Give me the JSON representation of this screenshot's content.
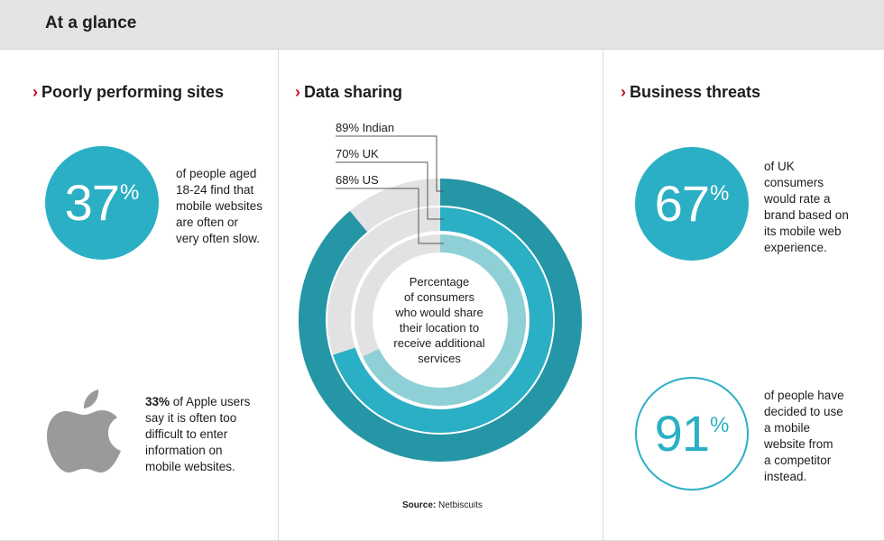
{
  "header": {
    "title": "At a glance"
  },
  "sections": {
    "left": {
      "title": "Poorly performing sites",
      "stat": {
        "value": "37",
        "unit": "%"
      },
      "stat_text": [
        "of people aged",
        "18-24 find that",
        "mobile websites",
        "are often or",
        "very often slow."
      ],
      "apple_bold": "33%",
      "apple_text": [
        "of Apple users",
        "say it is often too",
        "difficult to enter",
        "information on",
        "mobile websites."
      ]
    },
    "middle": {
      "title": "Data sharing",
      "center_text": [
        "Percentage",
        "of consumers",
        "who would share",
        "their location to",
        "receive additional",
        "services"
      ],
      "source_label": "Source:",
      "source_value": "Netbiscuits"
    },
    "right": {
      "title": "Business threats",
      "stat1": {
        "value": "67",
        "unit": "%"
      },
      "stat1_text": [
        "of UK",
        "consumers",
        "would rate a",
        "brand based on",
        "its mobile web",
        "experience."
      ],
      "stat2": {
        "value": "91",
        "unit": "%"
      },
      "stat2_text": [
        "of people have",
        "decided to use",
        "a mobile",
        "website from",
        "a competitor",
        "instead."
      ]
    }
  },
  "icons": {
    "apple": "apple-logo-icon",
    "chevron": "chevron-right-icon"
  },
  "colors": {
    "accent": "#2bafc5",
    "ring_outer": "#2596a6",
    "ring_middle": "#2bafc5",
    "ring_inner": "#8fd0d7",
    "ring_track": "#e2e2e4",
    "chevron": "#c8102e",
    "apple": "#9a9a9d"
  },
  "chart_data": {
    "type": "pie",
    "title": "Data sharing",
    "categories": [
      "Indian",
      "UK",
      "US"
    ],
    "values": [
      89,
      70,
      68
    ],
    "labels": [
      "89% Indian",
      "70% UK",
      "68% US"
    ],
    "center_label": "Percentage of consumers who would share their location to receive additional services",
    "source": "Source: Netbiscuits"
  }
}
